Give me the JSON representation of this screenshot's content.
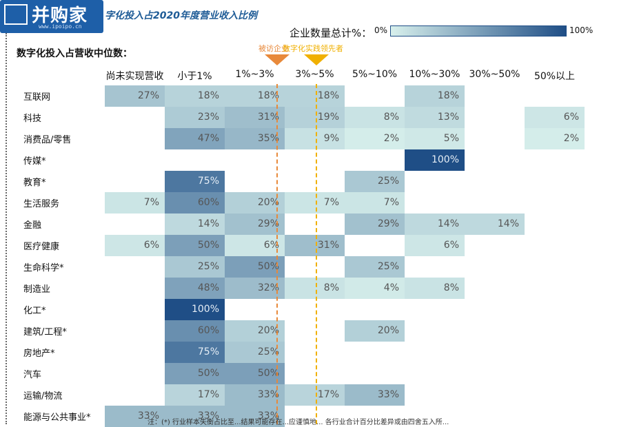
{
  "logo": {
    "name": "并购家",
    "url": "www.ipoipo.cn"
  },
  "title": "字化投入占2020年度营业收入比例",
  "subtitle": "数字化投入占营收中位数：",
  "legend": {
    "label": "企业数量总计%：",
    "min": "0%",
    "max": "100%",
    "min_color": "#d8f0ec",
    "max_color": "#1f4e86"
  },
  "markers": [
    {
      "label": "被访企业",
      "color": "#e8893a",
      "between_columns": [
        2,
        3
      ]
    },
    {
      "label": "数字化实践领先者",
      "color": "#f0b000",
      "between_columns": [
        3,
        4
      ]
    }
  ],
  "footnote": "注：(*) 行业样本失衡占比至...结果可能存在...应谨慎地... 各行业合计百分比差异或由四舍五入所...",
  "chart_data": {
    "type": "heatmap",
    "title": "字化投入占2020年度营业收入比例",
    "x_categories": [
      "尚未实现营收",
      "小于1%",
      "1%~3%",
      "3%~5%",
      "5%~10%",
      "10%~30%",
      "30%~50%",
      "50%以上"
    ],
    "y_categories": [
      "互联网",
      "科技",
      "消费品/零售",
      "传媒*",
      "教育*",
      "生活服务",
      "金融",
      "医疗健康",
      "生命科学*",
      "制造业",
      "化工*",
      "建筑/工程*",
      "房地产*",
      "汽车",
      "运输/物流",
      "能源与公共事业*"
    ],
    "unit": "%",
    "values": [
      [
        27,
        18,
        18,
        18,
        null,
        18,
        null,
        null
      ],
      [
        null,
        23,
        31,
        19,
        8,
        13,
        null,
        6
      ],
      [
        null,
        47,
        35,
        9,
        2,
        5,
        null,
        2
      ],
      [
        null,
        null,
        null,
        null,
        null,
        100,
        null,
        null
      ],
      [
        null,
        75,
        null,
        null,
        25,
        null,
        null,
        null
      ],
      [
        7,
        60,
        20,
        7,
        7,
        null,
        null,
        null
      ],
      [
        null,
        14,
        29,
        null,
        29,
        14,
        14,
        null
      ],
      [
        6,
        50,
        6,
        31,
        null,
        6,
        null,
        null
      ],
      [
        null,
        25,
        50,
        null,
        25,
        null,
        null,
        null
      ],
      [
        null,
        48,
        32,
        8,
        4,
        8,
        null,
        null
      ],
      [
        null,
        100,
        null,
        null,
        null,
        null,
        null,
        null
      ],
      [
        null,
        60,
        20,
        null,
        20,
        null,
        null,
        null
      ],
      [
        null,
        75,
        25,
        null,
        null,
        null,
        null,
        null
      ],
      [
        null,
        50,
        50,
        null,
        null,
        null,
        null,
        null
      ],
      [
        null,
        17,
        33,
        17,
        33,
        null,
        null,
        null
      ],
      [
        33,
        33,
        33,
        null,
        null,
        null,
        null,
        null
      ]
    ]
  }
}
